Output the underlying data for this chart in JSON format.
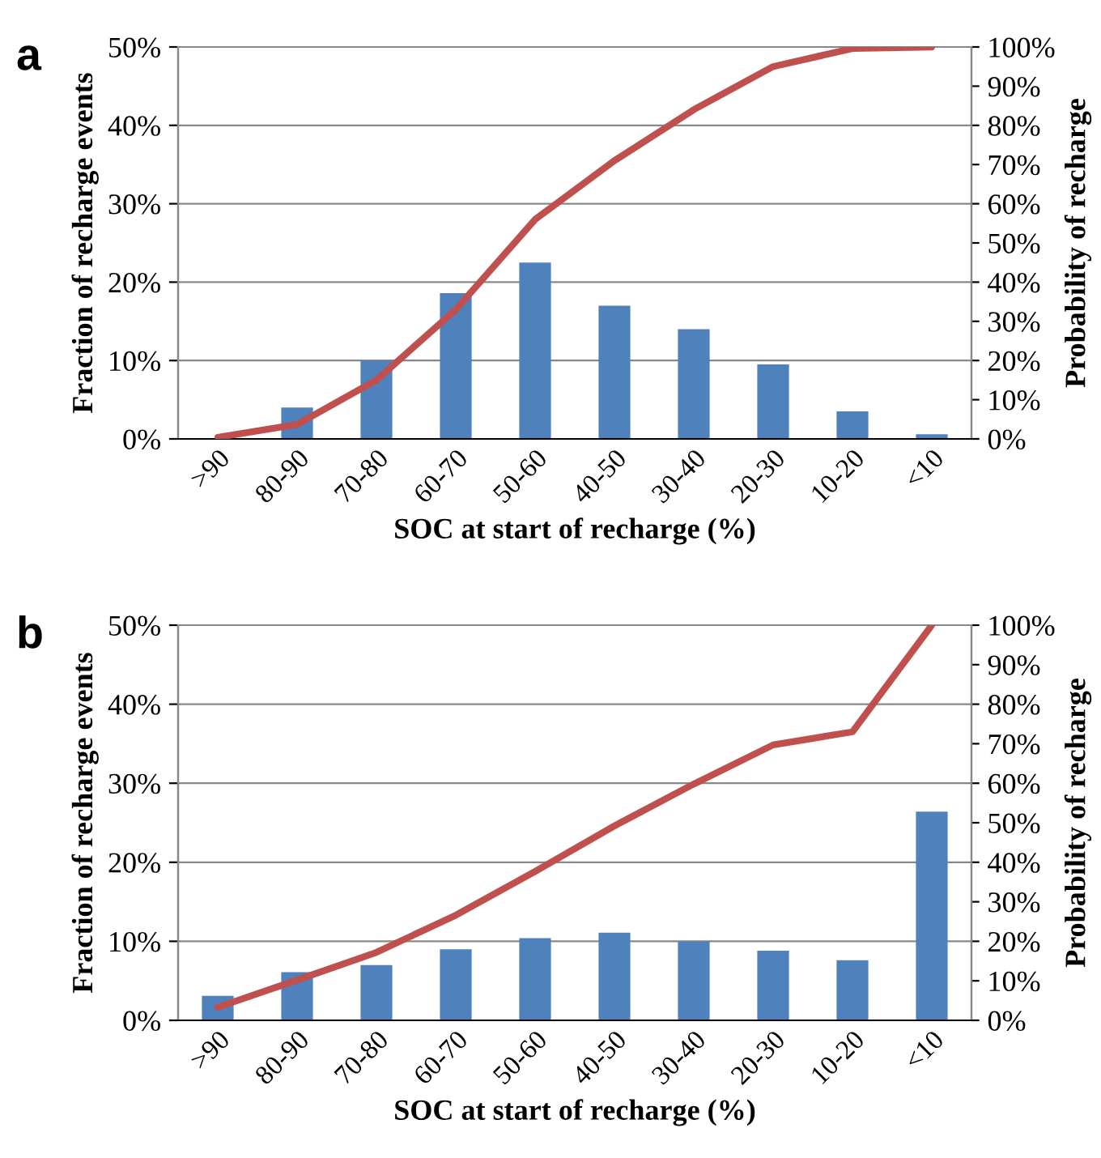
{
  "chart_data": [
    {
      "type": "bar",
      "annotations": [
        "a"
      ],
      "xlabel": "SOC at start of recharge (%)",
      "ylabel": "Fraction of recharge events",
      "y2label": "Probability of recharge",
      "categories": [
        ">90",
        "80-90",
        "70-80",
        "60-70",
        "50-60",
        "40-50",
        "30-40",
        "20-30",
        "10-20",
        "<10"
      ],
      "series": [
        {
          "color": "#4f81bd",
          "values": [
            0,
            4,
            10,
            18.6,
            22.5,
            17,
            14,
            9.5,
            3.5,
            0.6
          ]
        },
        {
          "type": "line",
          "axis": "y2",
          "color": "#c0504d",
          "values": [
            0.4,
            3.7,
            15,
            33,
            56,
            71,
            84,
            95,
            99.6,
            100
          ]
        }
      ],
      "ylim": [
        0,
        50
      ],
      "yticks": [
        {
          "value": 0,
          "label": "0%"
        },
        {
          "value": 10,
          "label": "10%"
        },
        {
          "value": 20,
          "label": "20%"
        },
        {
          "value": 30,
          "label": "30%"
        },
        {
          "value": 40,
          "label": "40%"
        },
        {
          "value": 50,
          "label": "50%"
        }
      ],
      "y2lim": [
        0,
        100
      ],
      "y2ticks": [
        {
          "value": 0,
          "label": "0%"
        },
        {
          "value": 10,
          "label": "10%"
        },
        {
          "value": 20,
          "label": "20%"
        },
        {
          "value": 30,
          "label": "30%"
        },
        {
          "value": 40,
          "label": "40%"
        },
        {
          "value": 50,
          "label": "50%"
        },
        {
          "value": 60,
          "label": "60%"
        },
        {
          "value": 70,
          "label": "70%"
        },
        {
          "value": 80,
          "label": "80%"
        },
        {
          "value": 90,
          "label": "90%"
        },
        {
          "value": 100,
          "label": "100%"
        }
      ],
      "grid": "y",
      "marker": "none",
      "line_style": "solid"
    },
    {
      "type": "bar",
      "annotations": [
        "b"
      ],
      "xlabel": "SOC at start of recharge (%)",
      "ylabel": "Fraction of recharge events",
      "y2label": "Probability of recharge",
      "categories": [
        ">90",
        "80-90",
        "70-80",
        "60-70",
        "50-60",
        "40-50",
        "30-40",
        "20-30",
        "10-20",
        "<10"
      ],
      "series": [
        {
          "color": "#4f81bd",
          "values": [
            3.1,
            6.1,
            7,
            9,
            10.4,
            11.1,
            10,
            8.8,
            7.6,
            26.4
          ]
        },
        {
          "type": "line",
          "axis": "y2",
          "color": "#c0504d",
          "values": [
            3.3,
            10.2,
            17.2,
            26.6,
            37.7,
            49.2,
            59.8,
            69.7,
            73,
            100
          ]
        }
      ],
      "ylim": [
        0,
        50
      ],
      "yticks": [
        {
          "value": 0,
          "label": "0%"
        },
        {
          "value": 10,
          "label": "10%"
        },
        {
          "value": 20,
          "label": "20%"
        },
        {
          "value": 30,
          "label": "30%"
        },
        {
          "value": 40,
          "label": "40%"
        },
        {
          "value": 50,
          "label": "50%"
        }
      ],
      "y2lim": [
        0,
        100
      ],
      "y2ticks": [
        {
          "value": 0,
          "label": "0%"
        },
        {
          "value": 10,
          "label": "10%"
        },
        {
          "value": 20,
          "label": "20%"
        },
        {
          "value": 30,
          "label": "30%"
        },
        {
          "value": 40,
          "label": "40%"
        },
        {
          "value": 50,
          "label": "50%"
        },
        {
          "value": 60,
          "label": "60%"
        },
        {
          "value": 70,
          "label": "70%"
        },
        {
          "value": 80,
          "label": "80%"
        },
        {
          "value": 90,
          "label": "90%"
        },
        {
          "value": 100,
          "label": "100%"
        }
      ],
      "grid": "y",
      "marker": "none",
      "line_style": "solid"
    }
  ]
}
